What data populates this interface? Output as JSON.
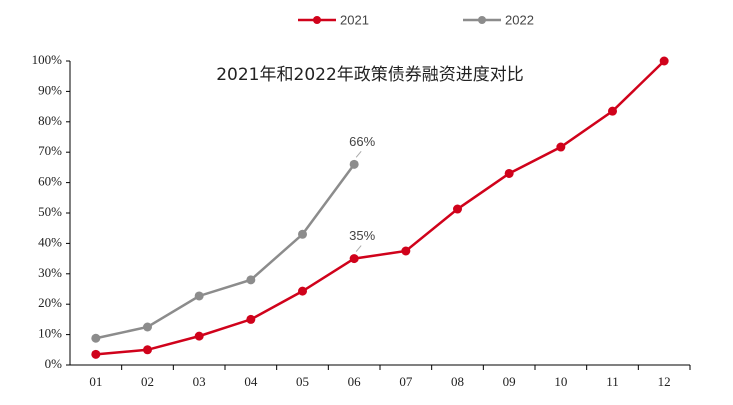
{
  "chart_data": {
    "type": "line",
    "title": "2021年和2022年政策债券融资进度对比",
    "categories": [
      "01",
      "02",
      "03",
      "04",
      "05",
      "06",
      "07",
      "08",
      "09",
      "10",
      "11",
      "12"
    ],
    "series": [
      {
        "name": "2021",
        "color": "#d0021b",
        "values": [
          3.5,
          5,
          9.5,
          15,
          24.3,
          35,
          37.5,
          51.3,
          63,
          71.7,
          83.5,
          100
        ],
        "value_labels": [
          null,
          null,
          null,
          null,
          null,
          "35%",
          null,
          null,
          null,
          null,
          null,
          null
        ]
      },
      {
        "name": "2022",
        "color": "#8c8c8c",
        "values": [
          8.8,
          12.5,
          22.7,
          28,
          43,
          66,
          null,
          null,
          null,
          null,
          null,
          null
        ],
        "value_labels": [
          null,
          null,
          null,
          null,
          null,
          "66%",
          null,
          null,
          null,
          null,
          null,
          null
        ]
      }
    ],
    "ylim": [
      0,
      100
    ],
    "yticks": [
      {
        "value": 0,
        "label": "0%"
      },
      {
        "value": 10,
        "label": "10%"
      },
      {
        "value": 20,
        "label": "20%"
      },
      {
        "value": 30,
        "label": "30%"
      },
      {
        "value": 40,
        "label": "40%"
      },
      {
        "value": 50,
        "label": "50%"
      },
      {
        "value": 60,
        "label": "60%"
      },
      {
        "value": 70,
        "label": "70%"
      },
      {
        "value": 80,
        "label": "80%"
      },
      {
        "value": 90,
        "label": "90%"
      },
      {
        "value": 100,
        "label": "100%"
      }
    ],
    "legend": "top"
  }
}
